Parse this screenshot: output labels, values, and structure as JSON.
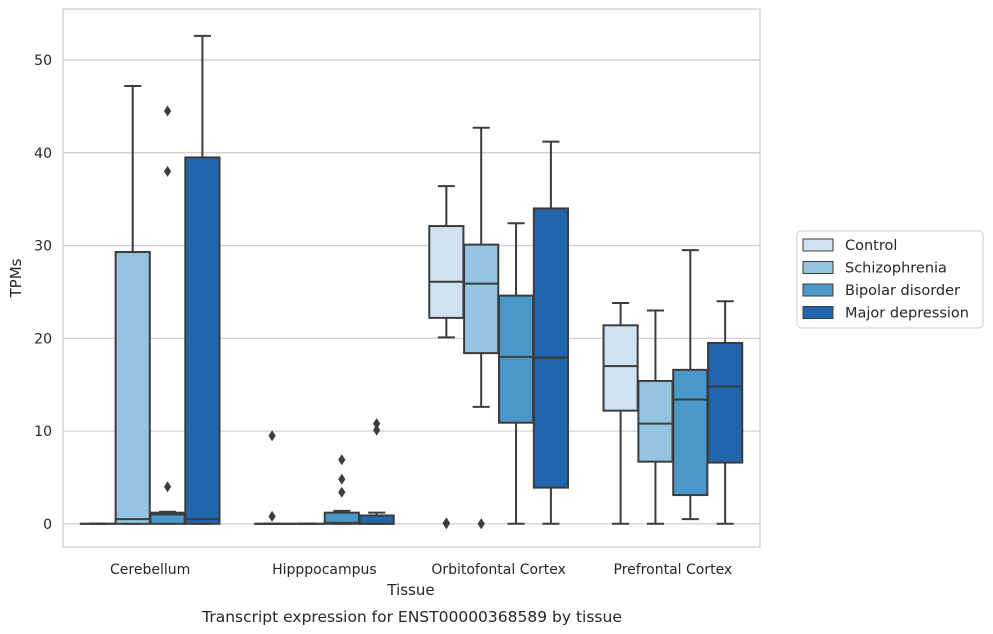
{
  "chart_data": {
    "type": "box",
    "caption": "Transcript expression for ENST00000368589 by tissue",
    "xlabel": "Tissue",
    "ylabel": "TPMs",
    "ylim": [
      -2.5,
      55.5
    ],
    "yticks": [
      0,
      10,
      20,
      30,
      40,
      50
    ],
    "grid": true,
    "legend_position": "right",
    "categories": [
      "Cerebellum",
      "Hipppocampus",
      "Orbitofontal Cortex",
      "Prefrontal Cortex"
    ],
    "series": [
      {
        "name": "Control",
        "color": "#d0e1f2",
        "boxes": [
          {
            "min": 0,
            "q1": 0,
            "median": 0,
            "q3": 0,
            "max": 0,
            "outliers": []
          },
          {
            "min": 0,
            "q1": 0,
            "median": 0,
            "q3": 0,
            "max": 0,
            "outliers": [
              9.5,
              0.8
            ]
          },
          {
            "min": 20.1,
            "q1": 22.2,
            "median": 26.1,
            "q3": 32.1,
            "max": 36.4,
            "outliers": [
              0.1,
              0
            ]
          },
          {
            "min": 0,
            "q1": 12.2,
            "median": 17.0,
            "q3": 21.4,
            "max": 23.8,
            "outliers": []
          }
        ]
      },
      {
        "name": "Schizophrenia",
        "color": "#94c4df",
        "boxes": [
          {
            "min": 0,
            "q1": 0,
            "median": 0.5,
            "q3": 29.3,
            "max": 47.2,
            "outliers": []
          },
          {
            "min": 0,
            "q1": 0,
            "median": 0,
            "q3": 0,
            "max": 0,
            "outliers": []
          },
          {
            "min": 12.6,
            "q1": 18.4,
            "median": 25.9,
            "q3": 30.1,
            "max": 42.7,
            "outliers": [
              0
            ]
          },
          {
            "min": 0,
            "q1": 6.7,
            "median": 10.8,
            "q3": 15.4,
            "max": 23.0,
            "outliers": []
          }
        ]
      },
      {
        "name": "Bipolar disorder",
        "color": "#4a98c9",
        "boxes": [
          {
            "min": 0,
            "q1": 0,
            "median": 1.0,
            "q3": 1.2,
            "max": 1.3,
            "outliers": [
              44.5,
              38.0,
              4.0
            ]
          },
          {
            "min": 0,
            "q1": 0,
            "median": 0.1,
            "q3": 1.2,
            "max": 1.4,
            "outliers": [
              6.9,
              4.8,
              3.4
            ]
          },
          {
            "min": 0,
            "q1": 10.9,
            "median": 18.0,
            "q3": 24.6,
            "max": 32.4,
            "outliers": []
          },
          {
            "min": 0.5,
            "q1": 3.1,
            "median": 13.4,
            "q3": 16.6,
            "max": 29.5,
            "outliers": []
          }
        ]
      },
      {
        "name": "Major depression",
        "color": "#2166ac",
        "boxes": [
          {
            "min": 0,
            "q1": 0,
            "median": 0.5,
            "q3": 39.5,
            "max": 52.6,
            "outliers": []
          },
          {
            "min": 0,
            "q1": 0,
            "median": 0,
            "q3": 0.9,
            "max": 1.2,
            "outliers": [
              10.8,
              10.1
            ]
          },
          {
            "min": 0,
            "q1": 3.9,
            "median": 17.9,
            "q3": 34.0,
            "max": 41.2,
            "outliers": []
          },
          {
            "min": 0,
            "q1": 6.6,
            "median": 14.8,
            "q3": 19.5,
            "max": 24.0,
            "outliers": []
          }
        ]
      }
    ]
  }
}
